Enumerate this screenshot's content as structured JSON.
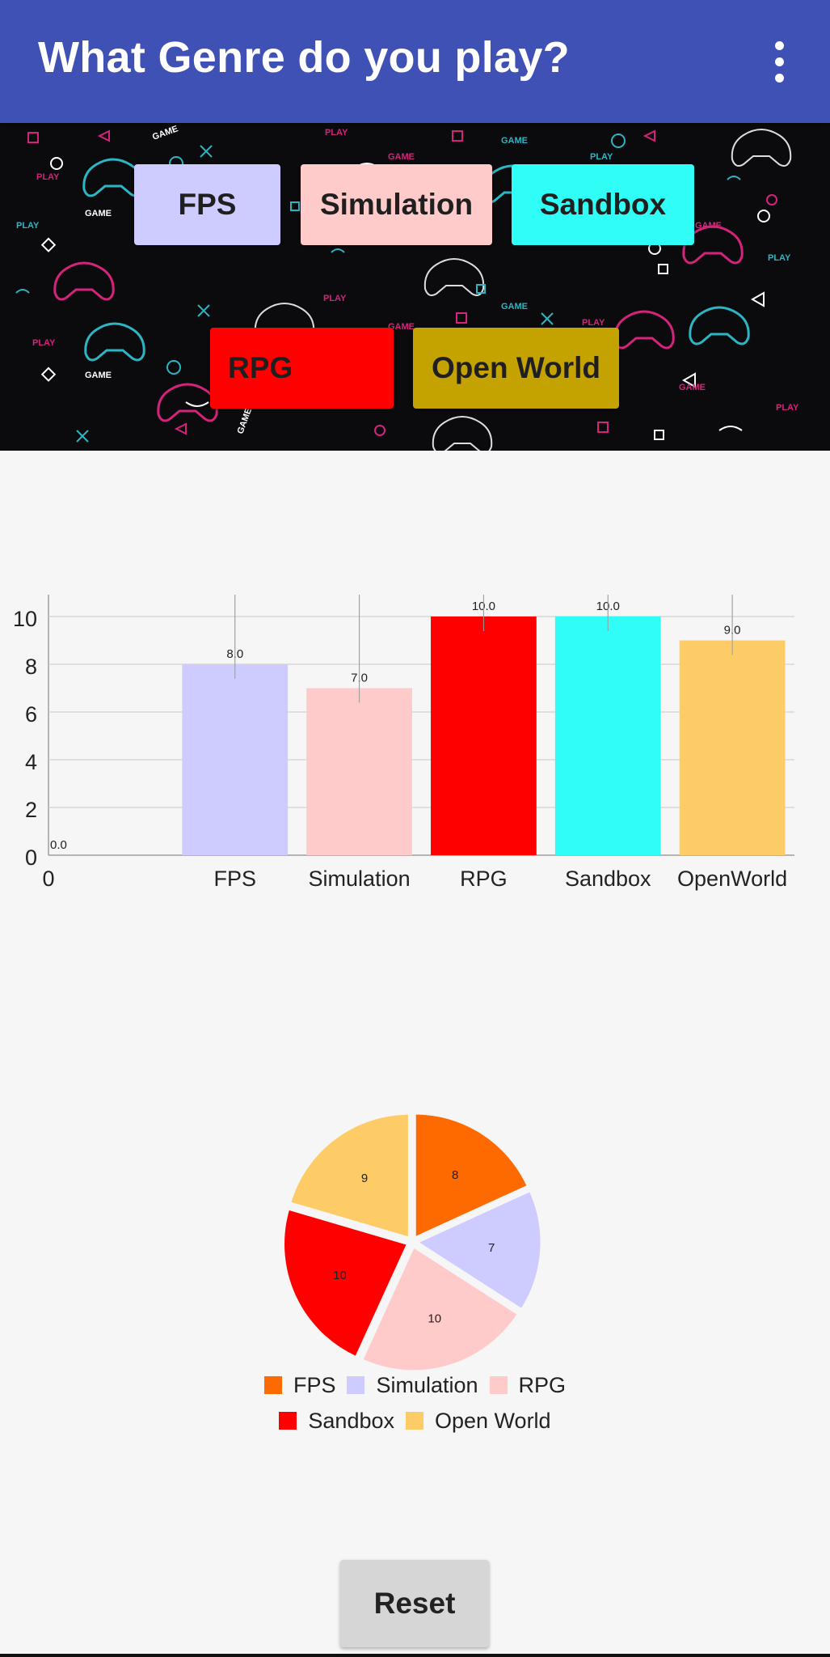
{
  "appbar": {
    "title": "What Genre do you play?",
    "menu_icon": "more-vert-icon",
    "background": "#3f51b5"
  },
  "banner": {
    "pattern_words": [
      "PLAY",
      "GAME"
    ],
    "buttons": {
      "fps": {
        "label": "FPS",
        "color": "#cdcbff"
      },
      "simulation": {
        "label": "Simulation",
        "color": "#ffcaca"
      },
      "sandbox": {
        "label": "Sandbox",
        "color": "#30fdf5"
      },
      "rpg": {
        "label": "RPG",
        "color": "#ff0000"
      },
      "open_world": {
        "label": "Open World",
        "color": "#c4a300"
      }
    }
  },
  "chart_data": [
    {
      "type": "bar",
      "categories": [
        "0",
        "FPS",
        "Simulation",
        "RPG",
        "Sandbox",
        "OpenWorld"
      ],
      "values": [
        0,
        8,
        7,
        10,
        10,
        9
      ],
      "value_labels": [
        "0.0",
        "8.0",
        "7.0",
        "10.0",
        "10.0",
        "9.0"
      ],
      "colors": [
        "#ffffff",
        "#cdcbff",
        "#ffcaca",
        "#ff0000",
        "#30fdf5",
        "#fecc66"
      ],
      "yticks": [
        "0",
        "2",
        "4",
        "6",
        "8",
        "10"
      ],
      "ylim": [
        0,
        10
      ],
      "grid": true,
      "legend": "none"
    },
    {
      "type": "pie",
      "labels": [
        "FPS",
        "Simulation",
        "RPG",
        "Sandbox",
        "Open World"
      ],
      "values": [
        8,
        7,
        10,
        10,
        9
      ],
      "value_labels": [
        "8",
        "7",
        "10",
        "10",
        "9"
      ],
      "colors": [
        "#ff6a00",
        "#cdcbff",
        "#ffcaca",
        "#ff0000",
        "#fecc66"
      ],
      "legend": "bottom"
    }
  ],
  "reset": {
    "label": "Reset"
  }
}
